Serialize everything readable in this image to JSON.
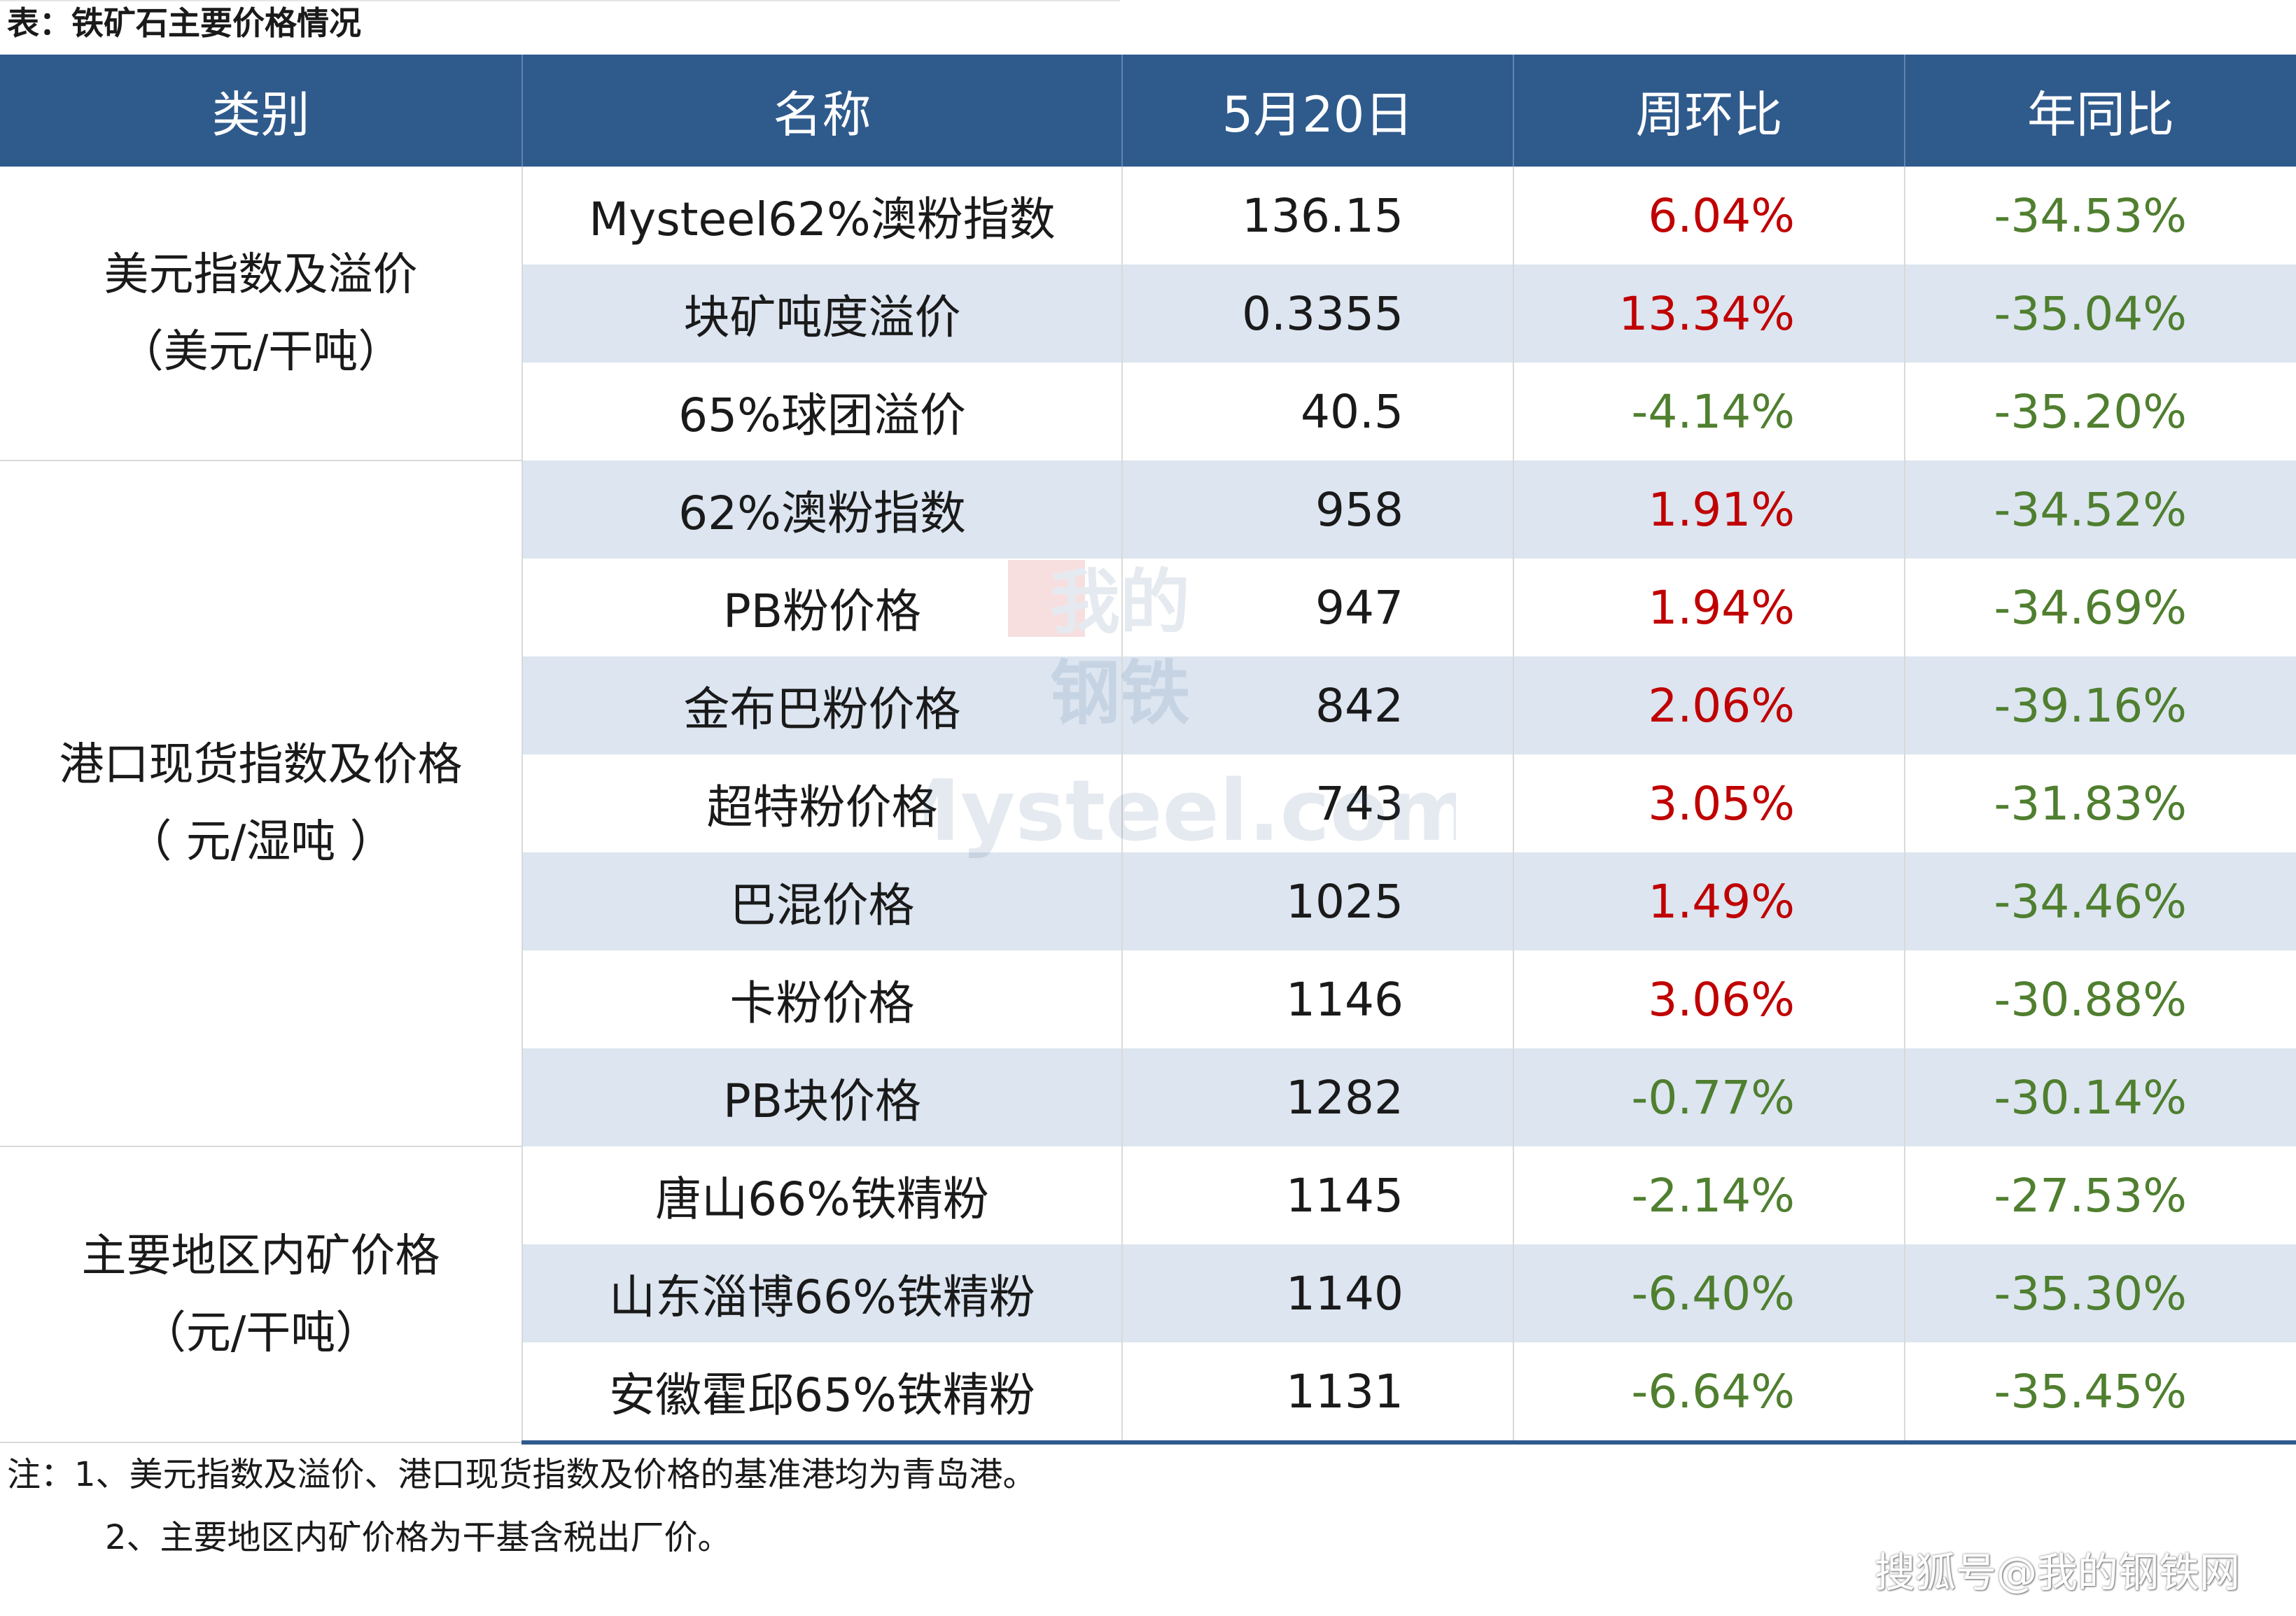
{
  "title": "表：铁矿石主要价格情况",
  "headers": [
    "类别",
    "名称",
    "5月20日",
    "周环比",
    "年同比"
  ],
  "groups": [
    {
      "category": [
        "美元指数及溢价",
        "（美元/干吨）"
      ],
      "rows": [
        {
          "name": "Mysteel62%澳粉指数",
          "value": "136.15",
          "wow": "6.04%",
          "yoy": "-34.53%"
        },
        {
          "name": "块矿吨度溢价",
          "value": "0.3355",
          "wow": "13.34%",
          "yoy": "-35.04%"
        },
        {
          "name": "65%球团溢价",
          "value": "40.5",
          "wow": "-4.14%",
          "yoy": "-35.20%"
        }
      ]
    },
    {
      "category": [
        "港口现货指数及价格",
        "（ 元/湿吨 ）"
      ],
      "rows": [
        {
          "name": "62%澳粉指数",
          "value": "958",
          "wow": "1.91%",
          "yoy": "-34.52%"
        },
        {
          "name": "PB粉价格",
          "value": "947",
          "wow": "1.94%",
          "yoy": "-34.69%"
        },
        {
          "name": "金布巴粉价格",
          "value": "842",
          "wow": "2.06%",
          "yoy": "-39.16%"
        },
        {
          "name": "超特粉价格",
          "value": "743",
          "wow": "3.05%",
          "yoy": "-31.83%"
        },
        {
          "name": "巴混价格",
          "value": "1025",
          "wow": "1.49%",
          "yoy": "-34.46%"
        },
        {
          "name": "卡粉价格",
          "value": "1146",
          "wow": "3.06%",
          "yoy": "-30.88%"
        },
        {
          "name": "PB块价格",
          "value": "1282",
          "wow": "-0.77%",
          "yoy": "-30.14%"
        }
      ]
    },
    {
      "category": [
        "主要地区内矿价格",
        "（元/干吨）"
      ],
      "rows": [
        {
          "name": "唐山66%铁精粉",
          "value": "1145",
          "wow": "-2.14%",
          "yoy": "-27.53%"
        },
        {
          "name": "山东淄博66%铁精粉",
          "value": "1140",
          "wow": "-6.40%",
          "yoy": "-35.30%"
        },
        {
          "name": "安徽霍邱65%铁精粉",
          "value": "1131",
          "wow": "-6.64%",
          "yoy": "-35.45%"
        }
      ]
    }
  ],
  "notes": [
    "注：1、美元指数及溢价、港口现货指数及价格的基准港均为青岛港。",
    "2、主要地区内矿价格为干基含税出厂价。"
  ],
  "watermark": {
    "top": "我的",
    "middle": "钢铁",
    "bottom": "Mysteel.com"
  },
  "brand": "搜狐号@我的钢铁网",
  "colors": {
    "header_bg": "#2f5a8c",
    "stripe": "#dce5f0",
    "positive": "#c00000",
    "negative": "#4f7f2f"
  }
}
